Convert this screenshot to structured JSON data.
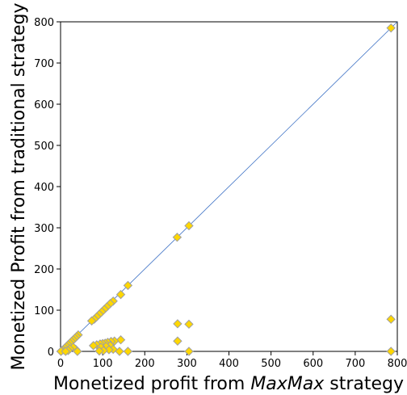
{
  "chart_data": {
    "type": "scatter",
    "xlabel_prefix": "Monetized profit from ",
    "xlabel_italic": "MaxMax",
    "xlabel_suffix": " strategy",
    "ylabel": "Monetized Profit from traditional strategy",
    "xlim": [
      0,
      800
    ],
    "ylim": [
      0,
      800
    ],
    "xticks": [
      0,
      100,
      200,
      300,
      400,
      500,
      600,
      700,
      800
    ],
    "yticks": [
      0,
      100,
      200,
      300,
      400,
      500,
      600,
      700,
      800
    ],
    "marker_color": "#FFD700",
    "marker_edge_color": "#A0A0A0",
    "diagonal_color": "#3A6FC4",
    "points": [
      [
        785,
        785
      ],
      [
        305,
        305
      ],
      [
        277,
        277
      ],
      [
        160,
        160
      ],
      [
        143,
        138
      ],
      [
        125,
        122
      ],
      [
        118,
        116
      ],
      [
        110,
        108
      ],
      [
        104,
        102
      ],
      [
        98,
        96
      ],
      [
        92,
        90
      ],
      [
        86,
        84
      ],
      [
        80,
        78
      ],
      [
        74,
        74
      ],
      [
        42,
        40
      ],
      [
        38,
        36
      ],
      [
        34,
        32
      ],
      [
        30,
        28
      ],
      [
        26,
        24
      ],
      [
        22,
        20
      ],
      [
        18,
        16
      ],
      [
        14,
        12
      ],
      [
        10,
        8
      ],
      [
        6,
        4
      ],
      [
        3,
        2
      ],
      [
        1,
        0
      ],
      [
        278,
        67
      ],
      [
        305,
        66
      ],
      [
        278,
        25
      ],
      [
        305,
        0
      ],
      [
        785,
        78
      ],
      [
        785,
        0
      ],
      [
        143,
        28
      ],
      [
        128,
        25
      ],
      [
        120,
        24
      ],
      [
        112,
        22
      ],
      [
        106,
        20
      ],
      [
        100,
        19
      ],
      [
        94,
        18
      ],
      [
        86,
        16
      ],
      [
        78,
        14
      ],
      [
        118,
        14
      ],
      [
        108,
        12
      ],
      [
        96,
        10
      ],
      [
        125,
        5
      ],
      [
        115,
        4
      ],
      [
        102,
        2
      ],
      [
        92,
        1
      ],
      [
        160,
        0
      ],
      [
        140,
        0
      ],
      [
        36,
        5
      ],
      [
        30,
        10
      ],
      [
        22,
        6
      ],
      [
        18,
        2
      ],
      [
        12,
        0
      ],
      [
        40,
        0
      ]
    ]
  }
}
